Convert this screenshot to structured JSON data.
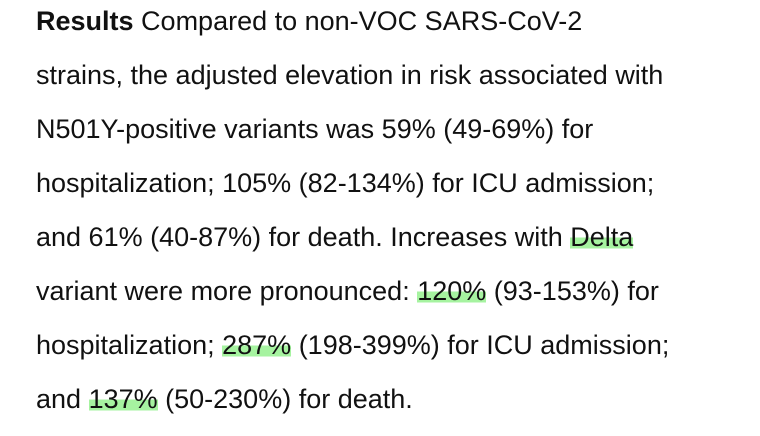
{
  "paragraph": {
    "heading": "Results",
    "line1": " Compared to non-VOC SARS-CoV-2",
    "line2": "strains, the adjusted elevation in risk associated with",
    "line3": "N501Y-positive variants was 59% (49-69%) for",
    "line4": "hospitalization; 105% (82-134%) for ICU admission;",
    "line5_pre": "and 61% (40-87%) for death. Increases with ",
    "line5_hl": "Delta",
    "line6_pre": "variant were more pronounced: ",
    "line6_hl": "120%",
    "line6_post": " (93-153%) for",
    "line7_pre": "hospitalization; ",
    "line7_hl": "287%",
    "line7_post": " (198-399%) for ICU admission;",
    "line8_pre": "and ",
    "line8_hl": "137%",
    "line8_post": " (50-230%) for death."
  },
  "highlight_color": "#a6f3a0"
}
